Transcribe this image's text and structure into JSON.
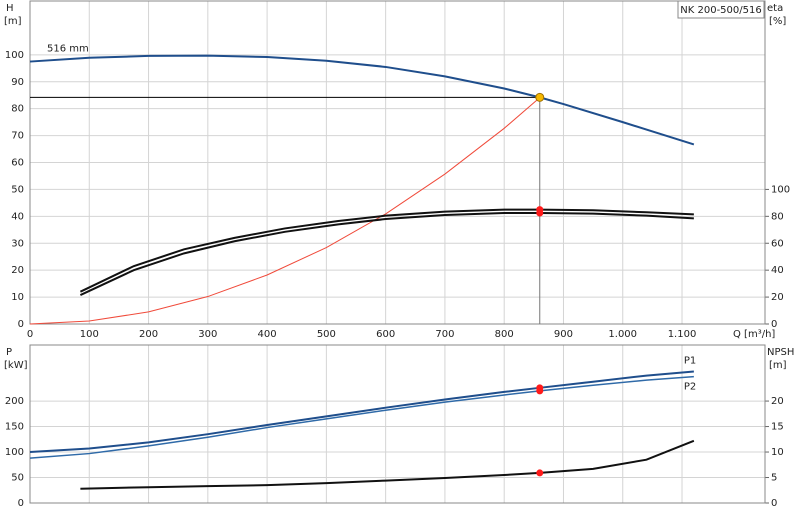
{
  "chart_data": [
    {
      "type": "line",
      "title": "NK 200-500/516",
      "ylabel": "H",
      "yunit": "[m]",
      "y2label": "eta",
      "y2unit": "[%]",
      "xlabel": "Q [m³/h]",
      "xlim": [
        0,
        1240
      ],
      "xticks": [
        0,
        100,
        200,
        300,
        400,
        500,
        600,
        700,
        800,
        900,
        {
          "value": 1000,
          "label": "1.000"
        },
        {
          "value": 1100,
          "label": "1.100"
        }
      ],
      "ylim": [
        0,
        120
      ],
      "yticks": [
        0,
        10,
        20,
        30,
        40,
        50,
        60,
        70,
        80,
        90,
        100
      ],
      "y2lim": [
        0,
        240
      ],
      "y2ticks": [
        0,
        20,
        40,
        60,
        80,
        100
      ],
      "grid": true,
      "duty_point": {
        "x": 860,
        "y": 84.2,
        "color": "#f5b800"
      },
      "series": [
        {
          "label": "516 mm",
          "color": "#1f4e8c",
          "width": 2,
          "x": [
            0,
            100,
            200,
            300,
            400,
            500,
            600,
            700,
            800,
            860,
            900,
            1000,
            1120
          ],
          "values": [
            97.5,
            98.9,
            99.6,
            99.7,
            99.2,
            97.8,
            95.5,
            92,
            87.5,
            84.2,
            81.7,
            75,
            66.7
          ]
        },
        {
          "color": "#f04a3a",
          "width": 1,
          "x": [
            0,
            100,
            200,
            300,
            400,
            500,
            600,
            700,
            800,
            860
          ],
          "values": [
            0,
            1.1,
            4.5,
            10.2,
            18.2,
            28.4,
            40.9,
            55.7,
            72.7,
            84.1
          ]
        },
        {
          "color": "#111111",
          "width": 2,
          "axis": "y2",
          "x": [
            85,
            175,
            260,
            345,
            430,
            520,
            600,
            700,
            800,
            860,
            950,
            1040,
            1120
          ],
          "values": [
            24,
            43,
            55.5,
            64,
            71,
            76.5,
            80.5,
            83.5,
            85,
            85,
            84.5,
            83,
            81.5
          ],
          "point": {
            "x": 860,
            "value": 85,
            "color": "#ff1a1a"
          }
        },
        {
          "color": "#111111",
          "width": 2,
          "axis": "y2",
          "x": [
            85,
            175,
            260,
            345,
            430,
            520,
            600,
            700,
            800,
            860,
            950,
            1040,
            1120
          ],
          "values": [
            21.5,
            40,
            52.5,
            61.5,
            68.5,
            74,
            78,
            81,
            82.5,
            82.5,
            82,
            80.5,
            78.5
          ],
          "point": {
            "x": 860,
            "value": 82.5,
            "color": "#ff1a1a"
          }
        }
      ]
    },
    {
      "type": "line",
      "ylabel": "P",
      "yunit": "[kW]",
      "y2label": "NPSH",
      "y2unit": "[m]",
      "xlim": [
        0,
        1240
      ],
      "xticks": [
        0,
        100,
        200,
        300,
        400,
        500,
        600,
        700,
        800,
        900,
        1000,
        1100
      ],
      "ylim": [
        0,
        310
      ],
      "yticks": [
        0,
        50,
        100,
        150,
        200
      ],
      "y2lim": [
        0,
        31
      ],
      "y2ticks": [
        0,
        5,
        10,
        15,
        20
      ],
      "grid": true,
      "series": [
        {
          "name": "P1",
          "color": "#1f4e8c",
          "width": 2,
          "x": [
            0,
            100,
            200,
            300,
            400,
            500,
            600,
            700,
            800,
            860,
            950,
            1040,
            1120
          ],
          "values": [
            100,
            107,
            119,
            135,
            153,
            170,
            187,
            203,
            218,
            226,
            238,
            250,
            258
          ],
          "point": {
            "x": 860,
            "value": 226,
            "color": "#ff1a1a"
          }
        },
        {
          "name": "P2",
          "color": "#2f6aa8",
          "width": 1.5,
          "x": [
            0,
            100,
            200,
            300,
            400,
            500,
            600,
            700,
            800,
            860,
            950,
            1040,
            1120
          ],
          "values": [
            88,
            97,
            112,
            129,
            148,
            165,
            182,
            198,
            212,
            220,
            231,
            241,
            248
          ],
          "point": {
            "x": 860,
            "value": 220,
            "color": "#ff1a1a"
          }
        },
        {
          "color": "#111111",
          "width": 2,
          "axis": "y2",
          "x": [
            85,
            200,
            300,
            400,
            500,
            600,
            700,
            800,
            860,
            950,
            1040,
            1120
          ],
          "values": [
            2.8,
            3.1,
            3.3,
            3.5,
            3.9,
            4.4,
            4.9,
            5.5,
            5.9,
            6.7,
            8.5,
            12.2
          ],
          "point": {
            "x": 860,
            "value": 5.9,
            "color": "#ff1a1a"
          }
        }
      ]
    }
  ]
}
